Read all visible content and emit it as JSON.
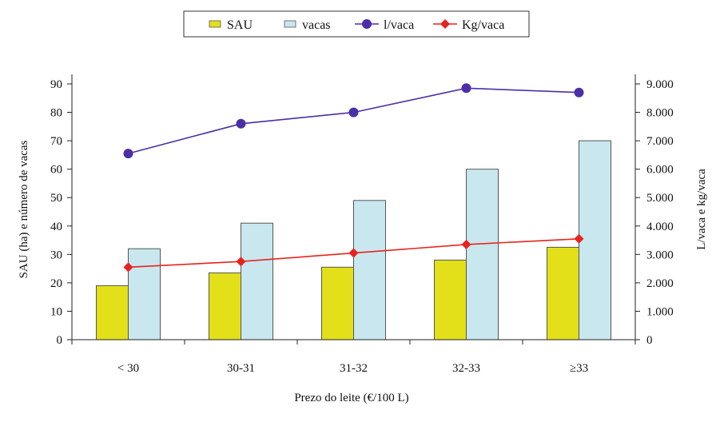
{
  "chart_data": {
    "type": "bar",
    "categories": [
      "< 30",
      "30-31",
      "31-32",
      "32-33",
      "≥33"
    ],
    "xlabel": "Prezo do leite (€/100 L)",
    "ylabel_left": "SAU (ha) e número de vacas",
    "ylabel_right": "L/vaca e kg/vaca",
    "left_axis": {
      "min": 0,
      "max": 90,
      "step": 10,
      "ticks": [
        "0",
        "10",
        "20",
        "30",
        "40",
        "50",
        "60",
        "70",
        "80",
        "90"
      ]
    },
    "right_axis": {
      "min": 0,
      "max": 9000,
      "step": 1000,
      "ticks": [
        "0",
        "1.000",
        "2.000",
        "3.000",
        "4.000",
        "5.000",
        "6.000",
        "7.000",
        "8.000",
        "9.000"
      ]
    },
    "grid": false,
    "legend_position": "top",
    "series": [
      {
        "name": "SAU",
        "kind": "bar",
        "axis": "left",
        "color": "#e3e019",
        "values": [
          19,
          23.5,
          25.5,
          28,
          32.5
        ]
      },
      {
        "name": "vacas",
        "kind": "bar",
        "axis": "left",
        "color": "#c9e7ee",
        "values": [
          32,
          41,
          49,
          60,
          70
        ]
      },
      {
        "name": "l/vaca",
        "kind": "line",
        "axis": "right",
        "color": "#4b2fa6",
        "marker": "circle",
        "values": [
          6550,
          7600,
          8000,
          8850,
          8700
        ]
      },
      {
        "name": "Kg/vaca",
        "kind": "line",
        "axis": "right",
        "color": "#e8231d",
        "marker": "diamond",
        "values": [
          2550,
          2750,
          3050,
          3350,
          3550
        ]
      }
    ]
  }
}
